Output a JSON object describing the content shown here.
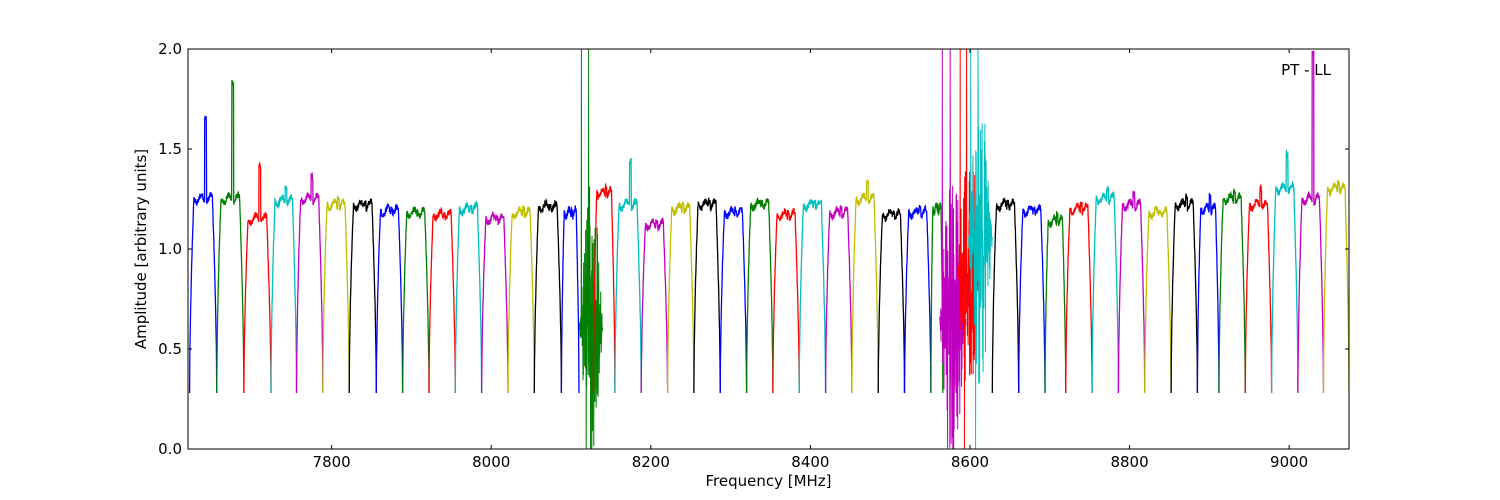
{
  "chart_data": {
    "type": "line",
    "title": "",
    "annotation": "PT - LL",
    "xlabel": "Frequency [MHz]",
    "ylabel": "Amplitude [arbitrary units]",
    "xlim": [
      7620,
      9075
    ],
    "ylim": [
      0.0,
      2.0
    ],
    "x_ticks": [
      7800,
      8000,
      8200,
      8400,
      8600,
      8800,
      9000
    ],
    "y_ticks": [
      0.0,
      0.5,
      1.0,
      1.5,
      2.0
    ],
    "x_tick_labels": [
      "7800",
      "8000",
      "8200",
      "8400",
      "8600",
      "8800",
      "9000"
    ],
    "y_tick_labels": [
      "0.0",
      "0.5",
      "1.0",
      "1.5",
      "2.0"
    ],
    "grid": false,
    "legend": "none",
    "description_of_series": "Spectral passbands (~32 MHz wide each) plotted in repeating color cycle; gray traces underlie colored ones",
    "colors": {
      "blue": "#0000ff",
      "green": "#007f00",
      "red": "#ff0000",
      "cyan": "#00bfbf",
      "magenta": "#bf00bf",
      "yellow": "#bfbf00",
      "black": "#000000",
      "gray": "#bfbfbf"
    },
    "series": [
      {
        "color": "blue",
        "x_start": 7622,
        "x_end": 7656,
        "level": 1.25,
        "peak": 1.67
      },
      {
        "color": "green",
        "x_start": 7656,
        "x_end": 7690,
        "level": 1.25,
        "peak": 1.85
      },
      {
        "color": "red",
        "x_start": 7690,
        "x_end": 7724,
        "level": 1.15,
        "peak": 1.44
      },
      {
        "color": "cyan",
        "x_start": 7724,
        "x_end": 7756,
        "level": 1.24,
        "peak": 1.32
      },
      {
        "color": "magenta",
        "x_start": 7756,
        "x_end": 7789,
        "level": 1.25,
        "peak": 1.38
      },
      {
        "color": "yellow",
        "x_start": 7789,
        "x_end": 7822,
        "level": 1.22,
        "peak": 1.27
      },
      {
        "color": "black",
        "x_start": 7822,
        "x_end": 7856,
        "level": 1.22,
        "peak": 1.25
      },
      {
        "color": "blue",
        "x_start": 7856,
        "x_end": 7889,
        "level": 1.19,
        "peak": 1.21
      },
      {
        "color": "green",
        "x_start": 7889,
        "x_end": 7922,
        "level": 1.18,
        "peak": 1.2
      },
      {
        "color": "red",
        "x_start": 7922,
        "x_end": 7955,
        "level": 1.17,
        "peak": 1.19
      },
      {
        "color": "cyan",
        "x_start": 7955,
        "x_end": 7988,
        "level": 1.2,
        "peak": 1.23
      },
      {
        "color": "magenta",
        "x_start": 7988,
        "x_end": 8021,
        "level": 1.15,
        "peak": 1.17
      },
      {
        "color": "yellow",
        "x_start": 8021,
        "x_end": 8054,
        "level": 1.18,
        "peak": 1.22
      },
      {
        "color": "black",
        "x_start": 8054,
        "x_end": 8088,
        "level": 1.21,
        "peak": 1.23
      },
      {
        "color": "blue",
        "x_start": 8088,
        "x_end": 8110,
        "level": 1.18,
        "peak": 1.21
      },
      {
        "color": "green",
        "x_start": 8110,
        "x_end": 8140,
        "level": 0.6,
        "peak": 2.0,
        "noisy": true
      },
      {
        "color": "red",
        "x_start": 8128,
        "x_end": 8155,
        "level": 1.28,
        "peak": 1.33
      },
      {
        "color": "cyan",
        "x_start": 8155,
        "x_end": 8188,
        "level": 1.22,
        "peak": 1.46
      },
      {
        "color": "magenta",
        "x_start": 8188,
        "x_end": 8221,
        "level": 1.12,
        "peak": 1.15
      },
      {
        "color": "yellow",
        "x_start": 8221,
        "x_end": 8254,
        "level": 1.2,
        "peak": 1.24
      },
      {
        "color": "black",
        "x_start": 8254,
        "x_end": 8287,
        "level": 1.22,
        "peak": 1.26
      },
      {
        "color": "blue",
        "x_start": 8287,
        "x_end": 8320,
        "level": 1.18,
        "peak": 1.21
      },
      {
        "color": "green",
        "x_start": 8320,
        "x_end": 8353,
        "level": 1.22,
        "peak": 1.25
      },
      {
        "color": "red",
        "x_start": 8353,
        "x_end": 8386,
        "level": 1.17,
        "peak": 1.2
      },
      {
        "color": "cyan",
        "x_start": 8386,
        "x_end": 8419,
        "level": 1.22,
        "peak": 1.25
      },
      {
        "color": "magenta",
        "x_start": 8419,
        "x_end": 8452,
        "level": 1.18,
        "peak": 1.22
      },
      {
        "color": "yellow",
        "x_start": 8452,
        "x_end": 8485,
        "level": 1.25,
        "peak": 1.35
      },
      {
        "color": "black",
        "x_start": 8485,
        "x_end": 8518,
        "level": 1.17,
        "peak": 1.2
      },
      {
        "color": "blue",
        "x_start": 8518,
        "x_end": 8551,
        "level": 1.18,
        "peak": 1.22
      },
      {
        "color": "green",
        "x_start": 8551,
        "x_end": 8566,
        "level": 1.2,
        "peak": 1.23
      },
      {
        "color": "magenta",
        "x_start": 8562,
        "x_end": 8595,
        "level": 0.65,
        "peak": 2.0,
        "noisy": true
      },
      {
        "color": "red",
        "x_start": 8585,
        "x_end": 8612,
        "level": 0.9,
        "peak": 2.0,
        "noisy": true
      },
      {
        "color": "cyan",
        "x_start": 8598,
        "x_end": 8628,
        "level": 1.05,
        "peak": 2.0,
        "noisy": true
      },
      {
        "color": "black",
        "x_start": 8628,
        "x_end": 8661,
        "level": 1.22,
        "peak": 1.25
      },
      {
        "color": "blue",
        "x_start": 8661,
        "x_end": 8694,
        "level": 1.19,
        "peak": 1.22
      },
      {
        "color": "green",
        "x_start": 8694,
        "x_end": 8720,
        "level": 1.14,
        "peak": 1.2
      },
      {
        "color": "red",
        "x_start": 8720,
        "x_end": 8753,
        "level": 1.2,
        "peak": 1.24
      },
      {
        "color": "cyan",
        "x_start": 8753,
        "x_end": 8786,
        "level": 1.25,
        "peak": 1.32
      },
      {
        "color": "magenta",
        "x_start": 8786,
        "x_end": 8819,
        "level": 1.22,
        "peak": 1.29
      },
      {
        "color": "yellow",
        "x_start": 8819,
        "x_end": 8852,
        "level": 1.18,
        "peak": 1.21
      },
      {
        "color": "black",
        "x_start": 8852,
        "x_end": 8885,
        "level": 1.22,
        "peak": 1.28
      },
      {
        "color": "blue",
        "x_start": 8885,
        "x_end": 8912,
        "level": 1.2,
        "peak": 1.28
      },
      {
        "color": "green",
        "x_start": 8912,
        "x_end": 8945,
        "level": 1.25,
        "peak": 1.3
      },
      {
        "color": "red",
        "x_start": 8945,
        "x_end": 8978,
        "level": 1.22,
        "peak": 1.32
      },
      {
        "color": "cyan",
        "x_start": 8978,
        "x_end": 9011,
        "level": 1.3,
        "peak": 1.49
      },
      {
        "color": "magenta",
        "x_start": 9011,
        "x_end": 9043,
        "level": 1.25,
        "peak": 2.0
      },
      {
        "color": "yellow",
        "x_start": 9043,
        "x_end": 9075,
        "level": 1.3,
        "peak": 1.35
      }
    ]
  }
}
